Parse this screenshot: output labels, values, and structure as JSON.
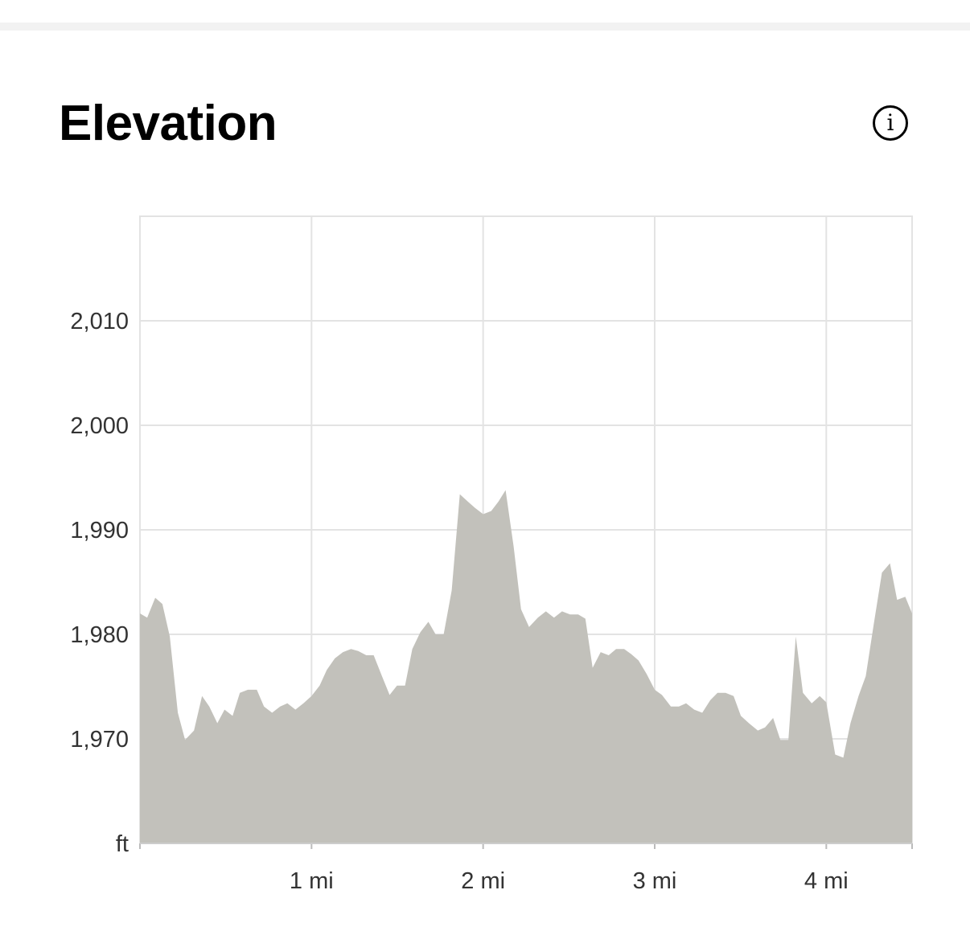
{
  "header": {
    "title": "Elevation",
    "info_icon": "info-circle-icon"
  },
  "chart_data": {
    "type": "area",
    "title": "",
    "xlabel": "",
    "ylabel": "ft",
    "xlim": [
      0,
      4.5
    ],
    "ylim": [
      1960,
      2020
    ],
    "x_ticks": [
      {
        "value": 1,
        "label": "1 mi"
      },
      {
        "value": 2,
        "label": "2 mi"
      },
      {
        "value": 3,
        "label": "3 mi"
      },
      {
        "value": 4,
        "label": "4 mi"
      }
    ],
    "y_ticks": [
      {
        "value": 1970,
        "label": "1,970"
      },
      {
        "value": 1980,
        "label": "1,980"
      },
      {
        "value": 1990,
        "label": "1,990"
      },
      {
        "value": 2000,
        "label": "2,000"
      },
      {
        "value": 2010,
        "label": "2,010"
      }
    ],
    "y_unit_label": "ft",
    "grid": true,
    "fill_color": "#c2c1bb",
    "grid_color": "#e3e3e3",
    "x": [
      0,
      0.042,
      0.089,
      0.131,
      0.174,
      0.221,
      0.263,
      0.315,
      0.362,
      0.404,
      0.451,
      0.493,
      0.54,
      0.582,
      0.629,
      0.681,
      0.723,
      0.77,
      0.817,
      0.859,
      0.906,
      0.953,
      1.0,
      1.047,
      1.089,
      1.136,
      1.183,
      1.23,
      1.272,
      1.319,
      1.362,
      1.408,
      1.455,
      1.498,
      1.545,
      1.587,
      1.634,
      1.681,
      1.723,
      1.77,
      1.817,
      1.864,
      1.911,
      1.953,
      2.0,
      2.047,
      2.089,
      2.131,
      2.178,
      2.221,
      2.268,
      2.319,
      2.366,
      2.413,
      2.46,
      2.507,
      2.554,
      2.596,
      2.638,
      2.685,
      2.732,
      2.775,
      2.822,
      2.864,
      2.906,
      2.953,
      3.0,
      3.042,
      3.094,
      3.141,
      3.183,
      3.23,
      3.277,
      3.324,
      3.366,
      3.413,
      3.46,
      3.502,
      3.549,
      3.601,
      3.643,
      3.69,
      3.732,
      3.779,
      3.822,
      3.864,
      3.915,
      3.962,
      4.0,
      4.052,
      4.099,
      4.141,
      4.188,
      4.23,
      4.277,
      4.324,
      4.371,
      4.413,
      4.46,
      4.5
    ],
    "y": [
      1982.0,
      1981.6,
      1983.5,
      1982.9,
      1979.8,
      1972.5,
      1969.9,
      1970.8,
      1974.1,
      1973.1,
      1971.5,
      1972.8,
      1972.2,
      1974.4,
      1974.7,
      1974.7,
      1973.1,
      1972.5,
      1973.1,
      1973.4,
      1972.8,
      1973.4,
      1974.1,
      1975.1,
      1976.6,
      1977.7,
      1978.3,
      1978.6,
      1978.4,
      1978.0,
      1978.0,
      1976.1,
      1974.2,
      1975.1,
      1975.1,
      1978.6,
      1980.2,
      1981.2,
      1980.0,
      1980.0,
      1984.2,
      1993.4,
      1992.7,
      1992.1,
      1991.5,
      1991.8,
      1992.7,
      1993.8,
      1988.4,
      1982.4,
      1980.7,
      1981.6,
      1982.2,
      1981.6,
      1982.2,
      1981.9,
      1981.9,
      1981.5,
      1976.8,
      1978.3,
      1978.0,
      1978.6,
      1978.6,
      1978.1,
      1977.5,
      1976.2,
      1974.7,
      1974.2,
      1973.1,
      1973.1,
      1973.4,
      1972.8,
      1972.5,
      1973.7,
      1974.4,
      1974.4,
      1974.1,
      1972.2,
      1971.5,
      1970.8,
      1971.1,
      1972.0,
      1969.9,
      1969.9,
      1979.8,
      1974.4,
      1973.4,
      1974.1,
      1973.5,
      1968.5,
      1968.2,
      1971.5,
      1974.1,
      1976.0,
      1981.0,
      1985.9,
      1986.8,
      1983.3,
      1983.6,
      1982.0
    ]
  }
}
